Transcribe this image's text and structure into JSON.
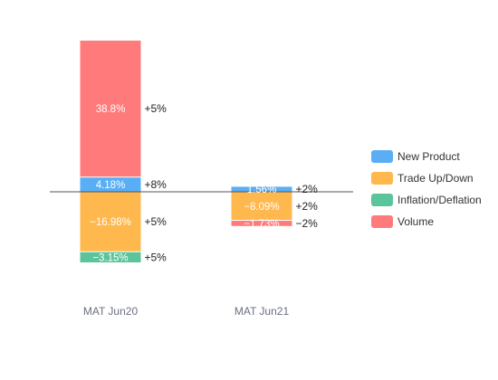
{
  "chart_data": {
    "type": "bar",
    "stacked": true,
    "diverging": true,
    "categories": [
      "MAT Jun20",
      "MAT Jun21"
    ],
    "series": [
      {
        "name": "New Product",
        "color": "#5aaef5",
        "values": [
          4.18,
          1.56
        ],
        "labels": [
          "4.18%",
          "1.56%"
        ],
        "side_labels": [
          "+8%",
          "+2%"
        ]
      },
      {
        "name": "Trade Up/Down",
        "color": "#ffb84d",
        "values": [
          -16.98,
          -8.09
        ],
        "labels": [
          "−16.98%",
          "−8.09%"
        ],
        "side_labels": [
          "+5%",
          "+2%"
        ]
      },
      {
        "name": "Inflation/Deflation",
        "color": "#5cc49a",
        "values": [
          -3.15,
          0
        ],
        "labels": [
          "−3.15%",
          ""
        ],
        "side_labels": [
          "+5%",
          ""
        ]
      },
      {
        "name": "Volume",
        "color": "#ff7b7b",
        "values": [
          38.8,
          -1.73
        ],
        "labels": [
          "38.8%",
          "−1.73%"
        ],
        "side_labels": [
          "+5%",
          "−2%"
        ]
      }
    ],
    "legend": "right",
    "grid": false,
    "baseline": 0
  }
}
